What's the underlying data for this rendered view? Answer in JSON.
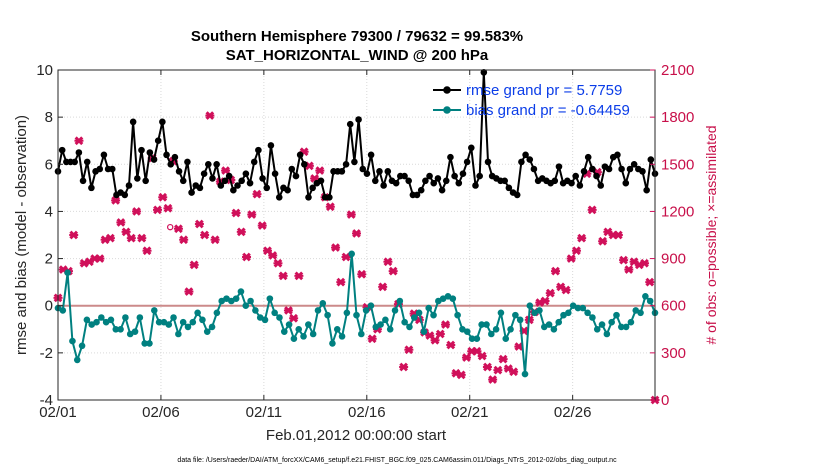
{
  "chart_data": {
    "type": "line",
    "title_line1": "Southern Hemisphere 79300 / 79632 = 99.583%",
    "title_line2": "SAT_HORIZONTAL_WIND @ 200 hPa",
    "xlabel": "Feb.01,2012 00:00:00 start",
    "ylabel": "rmse and bias (model - observation)",
    "ylabel_right": "# of obs: o=possible; ×=assimilated",
    "footnote": "data file: /Users/raeder/DAI/ATM_forcXX/CAM6_setup/f.e21.FHIST_BGC.f09_025.CAM6assim.011/Diags_NTrS_2012-02/obs_diag_output.nc",
    "xlim": [
      0,
      29
    ],
    "ylim": [
      -4,
      10
    ],
    "ylim_right": [
      0,
      2100
    ],
    "x_ticks": [
      0,
      5,
      10,
      15,
      20,
      25
    ],
    "x_tick_labels": [
      "02/01",
      "02/06",
      "02/11",
      "02/16",
      "02/21",
      "02/26"
    ],
    "y_ticks": [
      -4,
      -2,
      0,
      2,
      4,
      6,
      8,
      10
    ],
    "y_tick_labels": [
      "-4",
      "-2",
      "0",
      "2",
      "4",
      "6",
      "8",
      "10"
    ],
    "y_right_ticks": [
      0,
      300,
      600,
      900,
      1200,
      1500,
      1800,
      2100
    ],
    "y_right_tick_labels": [
      "0",
      "300",
      "600",
      "900",
      "1200",
      "1500",
      "1800",
      "2100"
    ],
    "grid": true,
    "legend_position": "top-right",
    "colors": {
      "rmse": "#000000",
      "bias": "#008080",
      "obs": "#d0105a",
      "zero_line": "#cc8a8a"
    },
    "series": [
      {
        "name": "rmse grand pr = 5.7759",
        "axis": "left",
        "values": [
          5.7,
          6.6,
          6.1,
          6.1,
          6.1,
          6.5,
          5.3,
          6.1,
          5.0,
          5.7,
          5.8,
          6.4,
          5.8,
          5.8,
          4.7,
          4.8,
          4.7,
          5.1,
          7.8,
          5.4,
          6.6,
          5.3,
          6.5,
          6.2,
          7.0,
          7.8,
          6.4,
          6.0,
          6.3,
          5.7,
          5.3,
          6.1,
          4.8,
          5.1,
          5.0,
          5.6,
          6.0,
          5.4,
          6.0,
          5.1,
          5.3,
          5.5,
          4.9,
          5.1,
          5.3,
          5.6,
          5.2,
          6.1,
          6.6,
          5.4,
          5.0,
          6.8,
          5.6,
          4.6,
          5.0,
          4.9,
          5.8,
          5.5,
          6.4,
          6.0,
          4.6,
          5.0,
          5.2,
          5.3,
          4.6,
          4.6,
          5.7,
          5.7,
          5.7,
          6.0,
          7.7,
          6.1,
          7.9,
          5.8,
          5.6,
          6.4,
          5.3,
          5.7,
          5.1,
          5.7,
          5.3,
          5.2,
          5.5,
          5.5,
          5.3,
          4.7,
          4.7,
          4.9,
          5.3,
          5.5,
          5.2,
          5.4,
          4.9,
          5.3,
          6.3,
          5.5,
          5.2,
          5.6,
          6.1,
          6.7,
          5.1,
          5.5,
          9.9,
          6.1,
          5.5,
          5.4,
          5.3,
          5.3,
          5.0,
          4.8,
          4.7,
          6.1,
          6.4,
          6.2,
          5.8,
          5.3,
          5.4,
          5.3,
          5.2,
          5.3,
          5.9,
          5.2,
          5.3,
          5.2,
          5.5,
          5.1,
          5.7,
          6.3,
          5.8,
          5.5,
          5.1,
          5.9,
          5.8,
          6.3,
          6.4,
          5.8,
          5.2,
          5.8,
          6.0,
          5.8,
          5.7,
          4.9,
          6.2,
          5.6
        ]
      },
      {
        "name": "bias grand pr = -0.64459",
        "axis": "left",
        "values": [
          -0.1,
          -0.2,
          1.4,
          -1.5,
          -2.3,
          -1.7,
          -0.6,
          -0.8,
          -0.7,
          -0.5,
          -0.7,
          -0.6,
          -1.0,
          -1.0,
          -0.5,
          -1.2,
          -1.1,
          -0.5,
          -1.6,
          -1.6,
          -0.2,
          -0.7,
          -0.7,
          -0.8,
          -0.5,
          -1.2,
          -0.7,
          -0.9,
          -0.7,
          -0.3,
          -0.6,
          -1.1,
          -0.9,
          -0.3,
          0.2,
          0.3,
          0.2,
          0.3,
          0.6,
          0.0,
          0.2,
          -0.2,
          -0.5,
          -0.6,
          0.3,
          -0.3,
          -0.5,
          -1.1,
          -0.8,
          -1.4,
          -1.0,
          -1.3,
          -0.8,
          -1.2,
          -0.2,
          0.1,
          -0.4,
          -1.6,
          -1.0,
          -1.3,
          -0.3,
          2.2,
          -0.4,
          -1.2,
          -0.2,
          0.0,
          -0.9,
          -0.8,
          -0.6,
          -1.0,
          -0.2,
          0.2,
          -0.7,
          -0.9,
          -0.5,
          -0.3,
          -1.1,
          -0.1,
          -0.4,
          0.2,
          0.3,
          0.4,
          0.3,
          -0.4,
          -1.0,
          -1.1,
          -1.4,
          -1.4,
          -0.8,
          -0.8,
          -1.2,
          -1.0,
          -0.3,
          -1.4,
          -1.0,
          -0.4,
          -0.6,
          -2.9,
          0.0,
          -0.3,
          -0.2,
          -0.9,
          -0.8,
          -1.0,
          -0.7,
          -0.4,
          -0.3,
          0.0,
          -0.1,
          -0.1,
          -0.3,
          -0.5,
          -1.0,
          -0.8,
          -1.2,
          -0.7,
          -0.4,
          -0.9,
          -0.9,
          -0.7,
          -0.2,
          -0.3,
          0.4,
          0.2,
          -0.3
        ]
      },
      {
        "name": "assimilated",
        "axis": "right",
        "marker": "x",
        "values": [
          650,
          830,
          820,
          1050,
          1650,
          870,
          880,
          900,
          900,
          1020,
          1030,
          1270,
          1130,
          1070,
          1030,
          1200,
          1030,
          950,
          1540,
          1210,
          1290,
          1220,
          1520,
          1090,
          1020,
          690,
          860,
          1120,
          1050,
          1810,
          1020,
          1390,
          1460,
          1400,
          1190,
          1070,
          910,
          1180,
          1310,
          1110,
          950,
          920,
          870,
          790,
          570,
          520,
          790,
          1580,
          1490,
          1410,
          1460,
          1290,
          1230,
          970,
          750,
          910,
          1180,
          1060,
          800,
          590,
          390,
          450,
          720,
          880,
          820,
          610,
          210,
          320,
          550,
          510,
          430,
          410,
          380,
          420,
          480,
          350,
          170,
          160,
          270,
          310,
          310,
          280,
          210,
          130,
          190,
          260,
          200,
          180,
          340,
          440,
          510,
          560,
          620,
          630,
          680,
          820,
          720,
          700,
          900,
          950,
          1030,
          1440,
          1210,
          1450,
          1010,
          1070,
          1050,
          1050,
          890,
          830,
          880,
          860,
          870,
          750,
          0
        ]
      }
    ],
    "possible_markers": [
      {
        "x": 5.45,
        "value": 1100
      }
    ]
  }
}
